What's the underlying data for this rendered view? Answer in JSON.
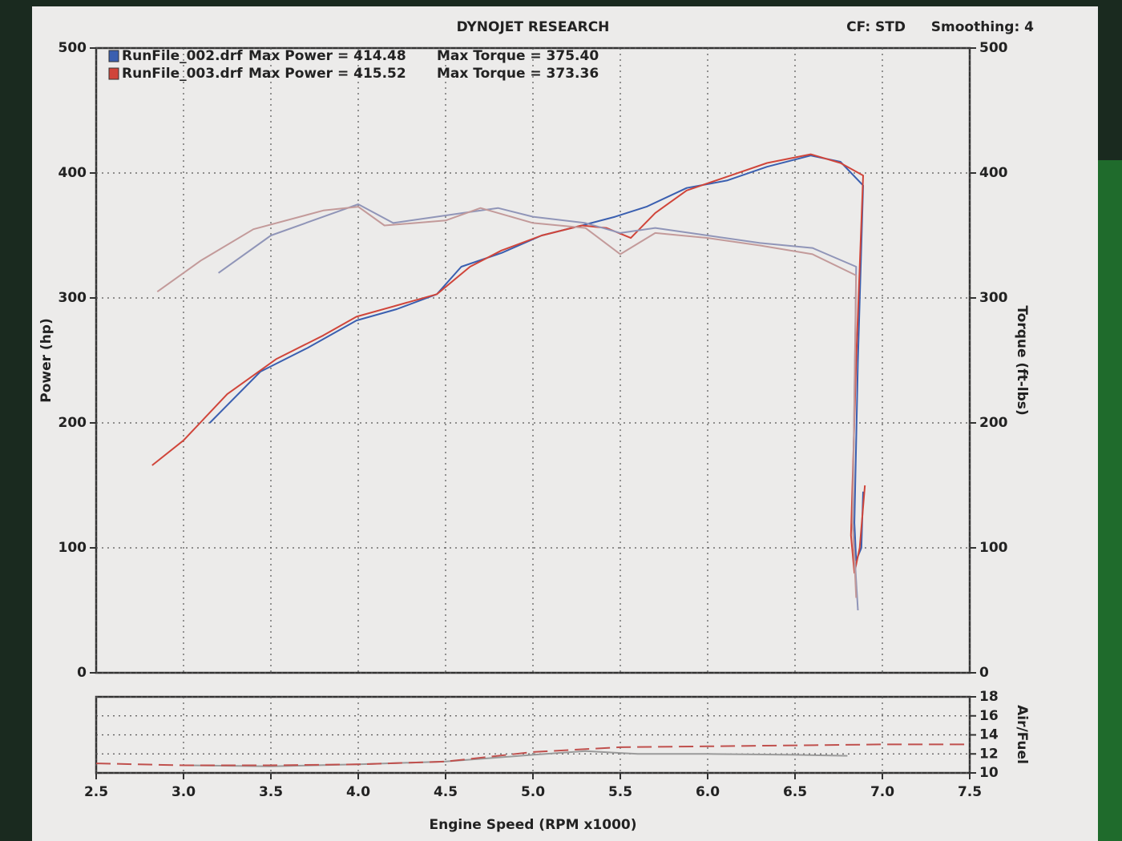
{
  "chart_data": [
    {
      "type": "line",
      "title": "DYNOJET RESEARCH",
      "header_left": "CF: STD",
      "header_right": "Smoothing: 4",
      "ylabel": "Power (hp)",
      "y2label": "Torque (ft-lbs)",
      "legend_power": [
        "Max Power = 414.48",
        "Max Power = 415.52"
      ],
      "legend_torque": [
        "Max Torque = 375.40",
        "Max Torque = 373.36"
      ],
      "xlim": [
        2.5,
        7.5
      ],
      "xticks": [
        2.5,
        3,
        3.5,
        4,
        4.5,
        5,
        5.5,
        6,
        6.5,
        7,
        7.5
      ],
      "ylim": [
        0,
        500
      ],
      "yticks": [
        0,
        100,
        200,
        300,
        400,
        500
      ],
      "y2lim": [
        0,
        500
      ],
      "y2ticks": [
        0,
        100,
        200,
        300,
        400,
        500
      ],
      "grid": true,
      "series": [
        {
          "name": "RunFile_002.drf",
          "color": "#3a5fb0",
          "x": [
            3.15,
            3.44,
            3.71,
            3.99,
            4.22,
            4.45,
            4.59,
            4.82,
            5.05,
            5.28,
            5.47,
            5.65,
            5.88,
            6.11,
            6.34,
            6.59,
            6.76,
            6.89,
            6.86,
            6.84,
            6.85,
            6.88,
            6.89
          ],
          "values": [
            200,
            241,
            260,
            282,
            291,
            303,
            325,
            336,
            350,
            358,
            365,
            373,
            388,
            394,
            405,
            414,
            409,
            390,
            250,
            120,
            90,
            100,
            145
          ]
        },
        {
          "name": "RunFile_003.drf",
          "color": "#d0453a",
          "x": [
            2.82,
            3.0,
            3.25,
            3.53,
            3.8,
            3.99,
            4.22,
            4.45,
            4.64,
            4.82,
            5.05,
            5.28,
            5.42,
            5.56,
            5.7,
            5.88,
            6.11,
            6.34,
            6.59,
            6.76,
            6.89,
            6.85,
            6.82,
            6.84,
            6.87,
            6.9
          ],
          "values": [
            166,
            186,
            223,
            251,
            270,
            285,
            294,
            303,
            325,
            338,
            350,
            358,
            356,
            348,
            368,
            386,
            397,
            408,
            415,
            408,
            398,
            250,
            110,
            80,
            100,
            150
          ]
        },
        {
          "name": "RunFile_002.drf",
          "color": "#9095b8",
          "axis": "y2",
          "x": [
            3.2,
            3.5,
            3.9,
            4.0,
            4.2,
            4.6,
            4.8,
            5.0,
            5.3,
            5.5,
            5.7,
            6.0,
            6.3,
            6.6,
            6.85,
            6.83,
            6.86
          ],
          "values": [
            320,
            350,
            370,
            375,
            360,
            368,
            372,
            365,
            360,
            352,
            356,
            350,
            344,
            340,
            325,
            120,
            50
          ]
        },
        {
          "name": "RunFile_003.drf",
          "color": "#c39a9a",
          "axis": "y2",
          "x": [
            2.85,
            3.1,
            3.4,
            3.8,
            4.0,
            4.15,
            4.5,
            4.7,
            5.0,
            5.3,
            5.5,
            5.7,
            6.0,
            6.3,
            6.6,
            6.85,
            6.83,
            6.85
          ],
          "values": [
            305,
            330,
            355,
            370,
            373,
            358,
            362,
            372,
            360,
            356,
            335,
            352,
            348,
            342,
            335,
            318,
            120,
            60
          ]
        }
      ]
    },
    {
      "type": "line",
      "ylabel": "Air/Fuel",
      "xlabel": "Engine Speed (RPM x1000)",
      "xlim": [
        2.5,
        7.5
      ],
      "xticks": [
        2.5,
        {
          "value": 3,
          "label": "3.0"
        },
        3.5,
        {
          "value": 4,
          "label": "4.0"
        },
        4.5,
        {
          "value": 5,
          "label": "5.0"
        },
        5.5,
        {
          "value": 6,
          "label": "6.0"
        },
        6.5,
        {
          "value": 7,
          "label": "7.0"
        },
        7.5
      ],
      "ylim": [
        10,
        18
      ],
      "yticks": [
        10,
        12,
        14,
        16,
        18
      ],
      "grid": true,
      "series": [
        {
          "name": "RunFile_002.drf",
          "color": "#9a9a9a",
          "line_style": "solid",
          "x": [
            3.0,
            3.5,
            4.0,
            4.5,
            5.0,
            5.3,
            5.6,
            6.0,
            6.5,
            6.8
          ],
          "values": [
            10.8,
            10.7,
            10.9,
            11.2,
            11.9,
            12.3,
            12.0,
            12.0,
            11.9,
            11.8
          ]
        },
        {
          "name": "RunFile_003.drf",
          "color": "#c0504d",
          "line_style": "dashed",
          "x": [
            2.5,
            3.0,
            3.5,
            4.0,
            4.5,
            5.0,
            5.5,
            6.0,
            6.5,
            7.0,
            7.5
          ],
          "values": [
            11.0,
            10.8,
            10.8,
            10.9,
            11.2,
            12.2,
            12.7,
            12.8,
            12.9,
            13.0,
            13.0
          ]
        }
      ]
    }
  ]
}
